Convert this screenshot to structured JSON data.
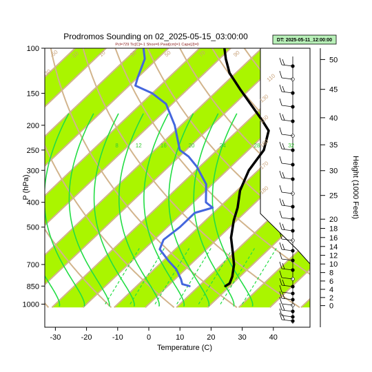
{
  "chart_data": {
    "type": "skew-t",
    "title": "Prodromos Sounding on 02_2025-05-15_03:00:00",
    "subtitle": "Pcl=729 Tic[C]=-1 Shox=6 Pwat[cm]=1 Cape[J]=0",
    "badge": "DT: 2025-05-11_12:00:00",
    "xlabel": "Temperature (C)",
    "ylabel": "P (hPa)",
    "y2label": "Height (1000 Feet)",
    "xlim": [
      -33,
      50
    ],
    "ylim": [
      1020,
      100
    ],
    "log_pressure_axis": true,
    "pressure_ticks": [
      100,
      150,
      200,
      250,
      300,
      400,
      500,
      700,
      850,
      1000
    ],
    "pressure_tick_labels": [
      "100",
      "150",
      "200",
      "250",
      "300",
      "400",
      "500",
      "700",
      "850",
      "1000"
    ],
    "temperature_ticks": [
      -30,
      -20,
      -10,
      0,
      10,
      20,
      30,
      40
    ],
    "temperature_tick_labels": [
      "-30",
      "-20",
      "-10",
      "0",
      "10",
      "20",
      "30",
      "40"
    ],
    "height_ticks_kft": [
      0,
      2,
      4,
      6,
      8,
      10,
      12,
      14,
      16,
      18,
      20,
      25,
      30,
      35,
      40,
      45,
      50
    ],
    "height_tick_labels": [
      "0",
      "2",
      "4",
      "6",
      "8",
      "10",
      "12",
      "14",
      "16",
      "18",
      "20",
      "25",
      "30",
      "35",
      "40",
      "45",
      "50"
    ],
    "mixing_ratio_labels": [
      {
        "text": "8",
        "t": -27
      },
      {
        "text": "12",
        "t": -20
      },
      {
        "text": "16",
        "t": -12
      },
      {
        "text": "20",
        "t": -3
      },
      {
        "text": "24",
        "t": 7
      },
      {
        "text": "28",
        "t": 18
      },
      {
        "text": "32",
        "t": 29
      }
    ],
    "adiabat_labels": [
      "-50",
      "-30",
      "-10",
      "10",
      "30",
      "50",
      "70",
      "90",
      "110",
      "130",
      "150",
      "160",
      "170",
      "180"
    ],
    "series": [
      {
        "color": "#000000",
        "points": [
          [
            18.5,
            850
          ],
          [
            19,
            830
          ],
          [
            17.5,
            780
          ],
          [
            14,
            700
          ],
          [
            9,
            620
          ],
          [
            4,
            550
          ],
          [
            -1,
            470
          ],
          [
            -4,
            420
          ],
          [
            -9,
            360
          ],
          [
            -13,
            300
          ],
          [
            -15,
            250
          ],
          [
            -20,
            210
          ],
          [
            -26,
            190
          ],
          [
            -33,
            170
          ],
          [
            -43,
            145
          ],
          [
            -52,
            125
          ],
          [
            -58,
            110
          ],
          [
            -62,
            100
          ]
        ]
      },
      {
        "color": "#4466dd",
        "points": [
          [
            7,
            850
          ],
          [
            4,
            835
          ],
          [
            2,
            800
          ],
          [
            -3,
            730
          ],
          [
            -8,
            680
          ],
          [
            -15,
            610
          ],
          [
            -17,
            560
          ],
          [
            -16,
            500
          ],
          [
            -16,
            440
          ],
          [
            -12,
            420
          ],
          [
            -16,
            400
          ],
          [
            -22,
            340
          ],
          [
            -31,
            290
          ],
          [
            -37,
            265
          ],
          [
            -42,
            250
          ],
          [
            -52,
            200
          ],
          [
            -62,
            165
          ],
          [
            -70,
            150
          ],
          [
            -78,
            140
          ],
          [
            -80,
            130
          ],
          [
            -84,
            110
          ],
          [
            -88,
            100
          ]
        ]
      }
    ]
  }
}
